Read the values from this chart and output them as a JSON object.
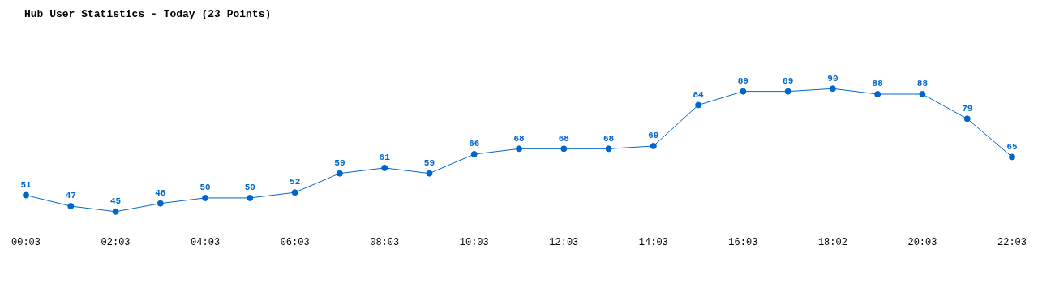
{
  "chart_data": {
    "type": "line",
    "title": "Hub User Statistics - Today (23 Points)",
    "categories": [
      "00:03",
      null,
      "02:03",
      null,
      "04:03",
      null,
      "06:03",
      null,
      "08:03",
      null,
      "10:03",
      null,
      "12:03",
      null,
      "14:03",
      null,
      "16:03",
      null,
      "18:02",
      null,
      "20:03",
      null,
      "22:03"
    ],
    "series": [
      {
        "color": "#0066cc",
        "values": [
          51,
          47,
          45,
          48,
          50,
          50,
          52,
          59,
          61,
          59,
          66,
          68,
          68,
          68,
          69,
          84,
          89,
          89,
          90,
          88,
          88,
          79,
          65
        ]
      }
    ],
    "data_labels": true,
    "marker": "circle",
    "grid": false,
    "legend": false,
    "tick_labels": "x"
  }
}
